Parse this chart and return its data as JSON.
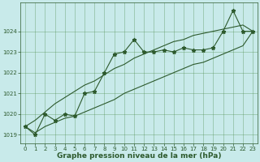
{
  "xlabel": "Graphe pression niveau de la mer (hPa)",
  "background_color": "#c8eaea",
  "grid_color": "#4a8a4a",
  "line_color": "#2d5a2d",
  "x": [
    0,
    1,
    2,
    3,
    4,
    5,
    6,
    7,
    8,
    9,
    10,
    11,
    12,
    13,
    14,
    15,
    16,
    17,
    18,
    19,
    20,
    21,
    22,
    23
  ],
  "y_main": [
    1019.4,
    1019.0,
    1020.0,
    1019.7,
    1020.0,
    1019.9,
    1021.0,
    1021.1,
    1022.0,
    1022.9,
    1023.0,
    1023.6,
    1023.0,
    1023.0,
    1023.1,
    1023.0,
    1023.2,
    1023.1,
    1023.1,
    1023.2,
    1024.0,
    1025.0,
    1024.0,
    1024.0
  ],
  "y_low": [
    1019.4,
    1019.1,
    1019.4,
    1019.6,
    1019.8,
    1019.9,
    1020.1,
    1020.3,
    1020.5,
    1020.7,
    1021.0,
    1021.2,
    1021.4,
    1021.6,
    1021.8,
    1022.0,
    1022.2,
    1022.4,
    1022.5,
    1022.7,
    1022.9,
    1023.1,
    1023.3,
    1024.0
  ],
  "y_high": [
    1019.4,
    1019.7,
    1020.1,
    1020.5,
    1020.8,
    1021.1,
    1021.4,
    1021.6,
    1021.9,
    1022.2,
    1022.4,
    1022.7,
    1022.9,
    1023.1,
    1023.3,
    1023.5,
    1023.6,
    1023.8,
    1023.9,
    1024.0,
    1024.1,
    1024.2,
    1024.3,
    1024.0
  ],
  "ylim": [
    1018.6,
    1025.4
  ],
  "xlim": [
    -0.5,
    23.5
  ],
  "yticks": [
    1019,
    1020,
    1021,
    1022,
    1023,
    1024
  ],
  "xticks": [
    0,
    1,
    2,
    3,
    4,
    5,
    6,
    7,
    8,
    9,
    10,
    11,
    12,
    13,
    14,
    15,
    16,
    17,
    18,
    19,
    20,
    21,
    22,
    23
  ],
  "marker": "*",
  "marker_size": 3.5,
  "linewidth": 0.8,
  "xlabel_fontsize": 6.5,
  "tick_fontsize": 5.0
}
